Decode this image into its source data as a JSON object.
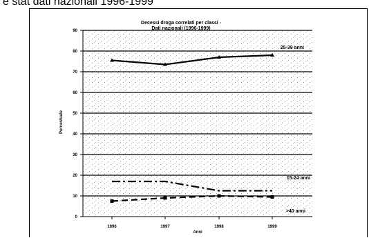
{
  "page_heading": "e stat dati nazionali 1996-1999",
  "chart_data": {
    "type": "line",
    "title": "Decessi droga correlati per classi -",
    "subtitle": "Dati nazionali (1996-1999)",
    "xlabel": "Anni",
    "ylabel": "Percentuale",
    "categories": [
      "1996",
      "1997",
      "1998",
      "1999"
    ],
    "ylim": [
      0,
      90
    ],
    "yticks": [
      0,
      10,
      20,
      30,
      40,
      50,
      60,
      70,
      80,
      90
    ],
    "grid": true,
    "series": [
      {
        "name": "25-39 anni",
        "values": [
          75.5,
          73.5,
          77,
          78
        ],
        "style": "solid",
        "marker": "triangle",
        "color": "#000000"
      },
      {
        "name": "15-24 anni",
        "values": [
          17,
          17,
          12.5,
          12.5
        ],
        "style": "dashdot",
        "marker": "none",
        "color": "#000000"
      },
      {
        "name": ">40 anni",
        "values": [
          7.5,
          9,
          10,
          9.5
        ],
        "style": "dashed",
        "marker": "square",
        "color": "#000000"
      }
    ]
  }
}
